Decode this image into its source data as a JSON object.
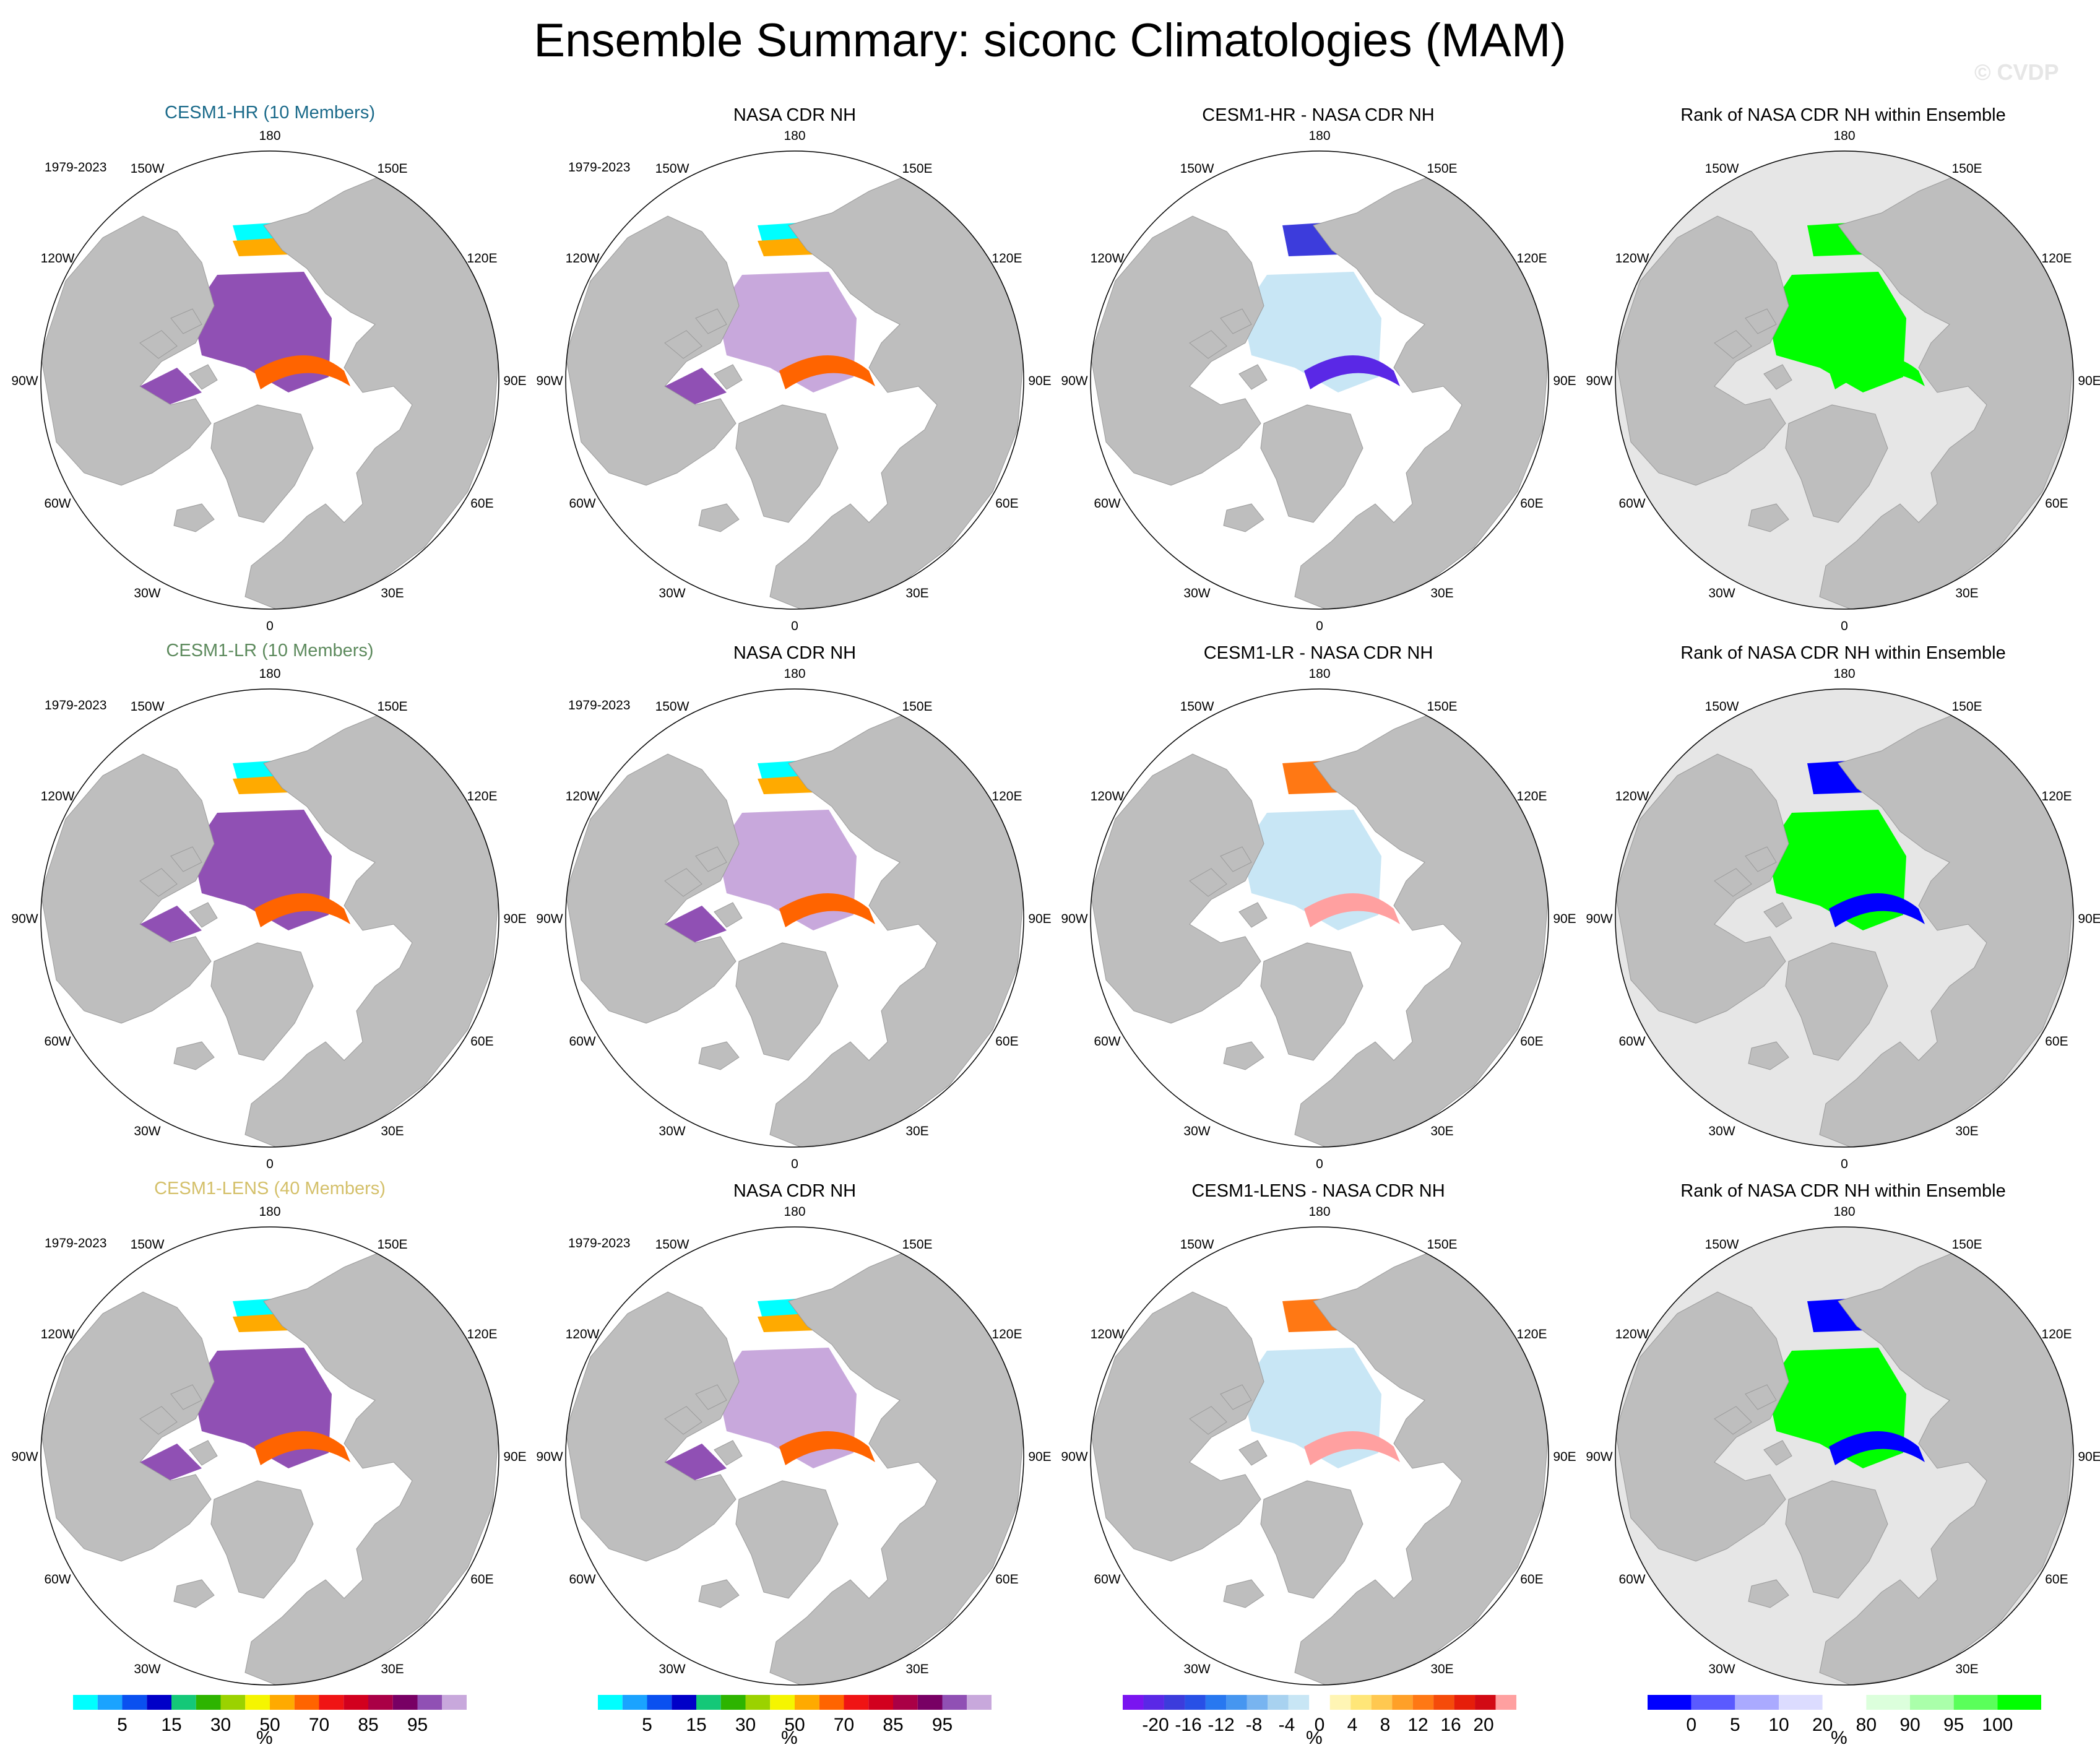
{
  "title": "Ensemble Summary: siconc Climatologies (MAM)",
  "watermark": "© CVDP",
  "period_label": "1979-2023",
  "longitude_labels": [
    "180",
    "150E",
    "120E",
    "90E",
    "60E",
    "30E",
    "0",
    "30W",
    "60W",
    "90W",
    "120W",
    "150W"
  ],
  "colors": {
    "land": "#bebebe",
    "ocean": "#ffffff",
    "rank_background": "#e6e6e6",
    "model_hr": "#1a6a8a",
    "model_lr": "#5d8a5d",
    "model_lens": "#d4c06a"
  },
  "rows": [
    {
      "model": "CESM1-HR (10 Members)",
      "model_color": "#1a6a8a",
      "obs_title": "NASA CDR NH",
      "diff_title": "CESM1-HR - NASA CDR NH",
      "rank_title": "Rank of NASA CDR NH within Ensemble",
      "show_obs_period": true
    },
    {
      "model": "CESM1-LR (10 Members)",
      "model_color": "#5d8a5d",
      "obs_title": "NASA CDR NH",
      "diff_title": "CESM1-LR - NASA CDR NH",
      "rank_title": "Rank of NASA CDR NH within Ensemble",
      "show_obs_period": true
    },
    {
      "model": "CESM1-LENS (40 Members)",
      "model_color": "#d4c06a",
      "obs_title": "NASA CDR NH",
      "diff_title": "CESM1-LENS - NASA CDR NH",
      "rank_title": "Rank of NASA CDR NH within Ensemble",
      "show_obs_period": true
    }
  ],
  "chart_data": [
    {
      "type": "heatmap",
      "projection": "north polar stereographic",
      "variable": "siconc",
      "description_key": "sea ice concentration climatology",
      "colorbar": {
        "unit": "%",
        "tick_labels": [
          "5",
          "15",
          "30",
          "50",
          "70",
          "85",
          "95"
        ],
        "colors": [
          "#00ffff",
          "#1aa3ff",
          "#0a50f0",
          "#0000c8",
          "#14c878",
          "#2db400",
          "#9bd200",
          "#f5f500",
          "#ffaa00",
          "#ff6400",
          "#f01414",
          "#d2001e",
          "#aa0046",
          "#780064",
          "#9050b4",
          "#c8a8dc"
        ]
      }
    },
    {
      "type": "heatmap",
      "variable": "siconc difference",
      "colorbar": {
        "unit": "%",
        "tick_labels": [
          "-20",
          "-16",
          "-12",
          "-8",
          "-4",
          "0",
          "4",
          "8",
          "12",
          "16",
          "20"
        ],
        "colors": [
          "#7a14f0",
          "#5a28e6",
          "#3c3cdc",
          "#2850e6",
          "#2878f0",
          "#4696f0",
          "#78b4f0",
          "#a8d2f0",
          "#c8e6f5",
          "#ffffff",
          "#fff5b4",
          "#ffe678",
          "#ffc850",
          "#ffa028",
          "#ff7814",
          "#f54b0a",
          "#e61e0a",
          "#d20a14",
          "#ffa0a0"
        ]
      }
    },
    {
      "type": "heatmap",
      "variable": "rank",
      "colorbar": {
        "unit": "%",
        "tick_labels": [
          "0",
          "5",
          "10",
          "20",
          "80",
          "90",
          "95",
          "100"
        ],
        "colors": [
          "#0000ff",
          "#5a5aff",
          "#aaaaff",
          "#dcdcff",
          "#ffffff",
          "#dcffdc",
          "#aaffaa",
          "#5aff5a",
          "#00ff00"
        ]
      }
    }
  ]
}
